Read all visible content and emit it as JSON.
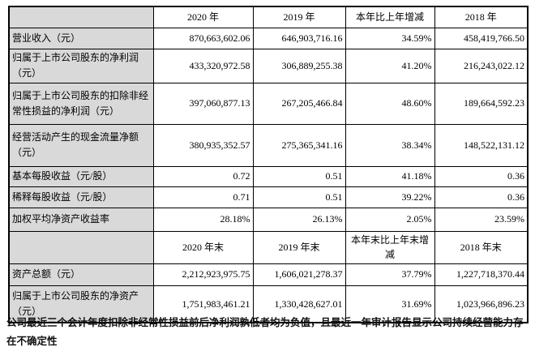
{
  "table": {
    "corner_label": "",
    "header_row_1": [
      "2020 年",
      "2019 年",
      "本年比上年增减",
      "2018 年"
    ],
    "rows": [
      {
        "label": "营业收入（元）",
        "values": [
          "870,663,602.06",
          "646,903,716.16",
          "34.59%",
          "458,419,766.50"
        ]
      },
      {
        "label": "归属于上市公司股东的净利润（元）",
        "values": [
          "433,320,972.58",
          "306,889,255.38",
          "41.20%",
          "216,243,022.12"
        ]
      },
      {
        "label": "归属于上市公司股东的扣除非经常性损益的净利润（元）",
        "values": [
          "397,060,877.13",
          "267,205,466.84",
          "48.60%",
          "189,664,592.23"
        ]
      },
      {
        "label": "经营活动产生的现金流量净额（元）",
        "values": [
          "380,935,352.57",
          "275,365,341.16",
          "38.34%",
          "148,522,131.12"
        ]
      },
      {
        "label": "基本每股收益（元/股）",
        "values": [
          "0.72",
          "0.51",
          "41.18%",
          "0.36"
        ]
      },
      {
        "label": "稀释每股收益（元/股）",
        "values": [
          "0.71",
          "0.51",
          "39.22%",
          "0.36"
        ]
      },
      {
        "label": "加权平均净资产收益率",
        "values": [
          "28.18%",
          "26.13%",
          "2.05%",
          "23.59%"
        ]
      },
      {
        "label": "",
        "subheader": true,
        "values": [
          "2020 年末",
          "2019 年末",
          "本年末比上年末增减",
          "2018 年末"
        ]
      },
      {
        "label": "资产总额（元）",
        "values": [
          "2,212,923,975.75",
          "1,606,021,278.37",
          "37.79%",
          "1,227,718,370.44"
        ]
      },
      {
        "label": "归属于上市公司股东的净资产（元）",
        "values": [
          "1,751,983,461.21",
          "1,330,428,627.01",
          "31.69%",
          "1,023,966,896.23"
        ]
      }
    ]
  },
  "footer_note": "公司最近三个会计年度扣除非经常性损益前后净利润孰低者均为负值，且最近一年审计报告显示公司持续经营能力存在不确定性"
}
